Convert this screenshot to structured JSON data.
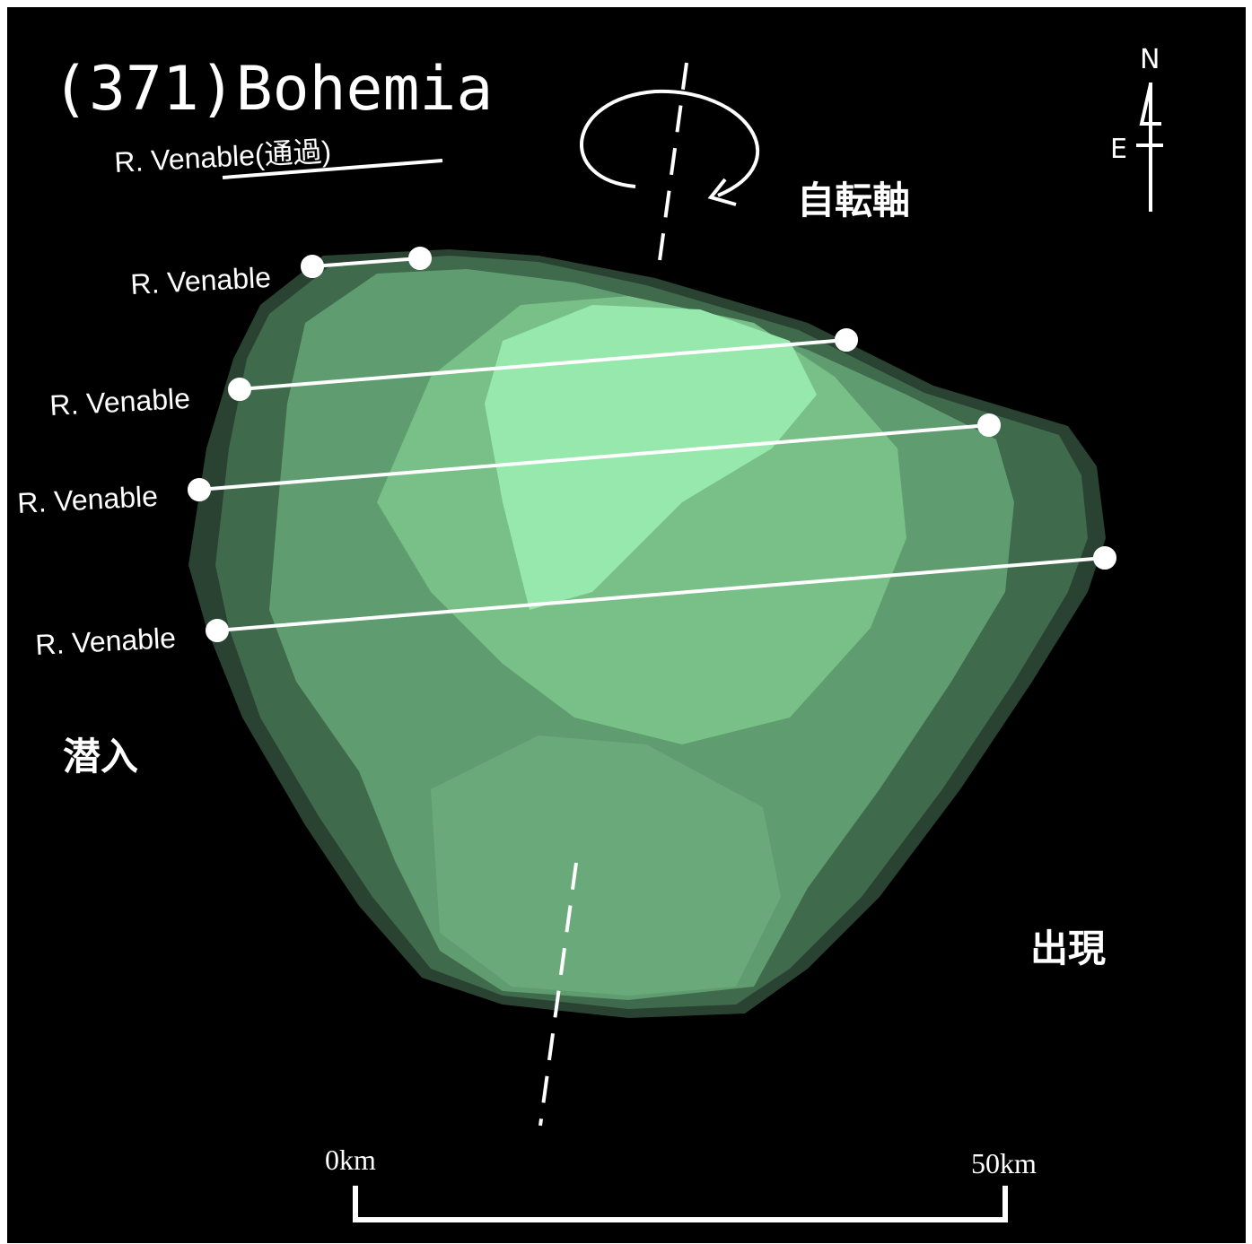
{
  "title": "(371)Bohemia",
  "legend": {
    "label": "R. Venable(通過)"
  },
  "chords": [
    {
      "label": "R. Venable"
    },
    {
      "label": "R. Venable"
    },
    {
      "label": "R. Venable"
    },
    {
      "label": "R. Venable"
    }
  ],
  "rotation_axis_label": "自転軸",
  "disappearance": "潜入",
  "reappearance": "出現",
  "scale": {
    "start": "0km",
    "end": "50km"
  },
  "compass": {
    "north": "N",
    "east": "E"
  }
}
